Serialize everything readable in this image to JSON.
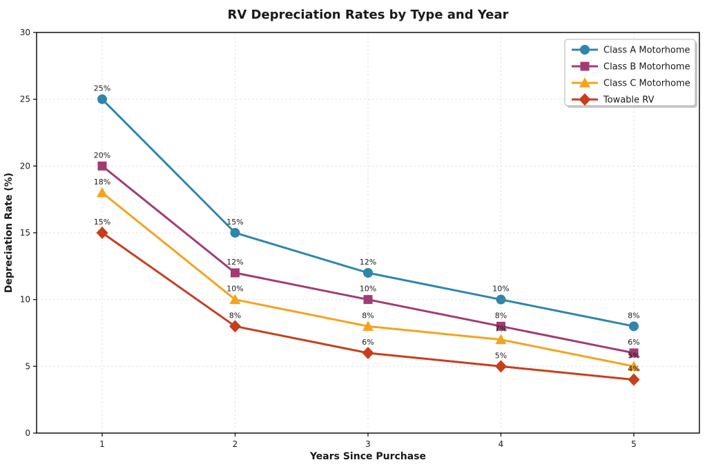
{
  "title": "RV Depreciation Rates by Type and Year",
  "chart_data": {
    "type": "line",
    "title": "RV Depreciation Rates by Type and Year",
    "xlabel": "Years Since Purchase",
    "ylabel": "Depreciation Rate (%)",
    "x": [
      1,
      2,
      3,
      4,
      5
    ],
    "xticks": [
      1,
      2,
      3,
      4,
      5
    ],
    "yticks": [
      0,
      5,
      10,
      15,
      20,
      25,
      30
    ],
    "ylim": [
      0,
      30
    ],
    "grid": true,
    "grid_style": "dashed",
    "legend_position": "top-right",
    "data_labels": true,
    "label_format": "{v}%",
    "series": [
      {
        "name": "Class A Motorhome",
        "color": "#2E86AB",
        "marker": "circle",
        "values": [
          25,
          15,
          12,
          10,
          8
        ]
      },
      {
        "name": "Class B Motorhome",
        "color": "#A23B72",
        "marker": "square",
        "values": [
          20,
          12,
          10,
          8,
          6
        ]
      },
      {
        "name": "Class C Motorhome",
        "color": "#F5A31B",
        "marker": "triangle",
        "values": [
          18,
          10,
          8,
          7,
          5
        ]
      },
      {
        "name": "Towable RV",
        "color": "#C73E1D",
        "marker": "diamond",
        "values": [
          15,
          8,
          6,
          5,
          4
        ]
      }
    ],
    "colors": {
      "grid": "#e3e3e3",
      "spine": "#000000",
      "text": "#1a1a1a",
      "legend_border": "#b3b3b3",
      "legend_shadow": "#999999"
    }
  }
}
